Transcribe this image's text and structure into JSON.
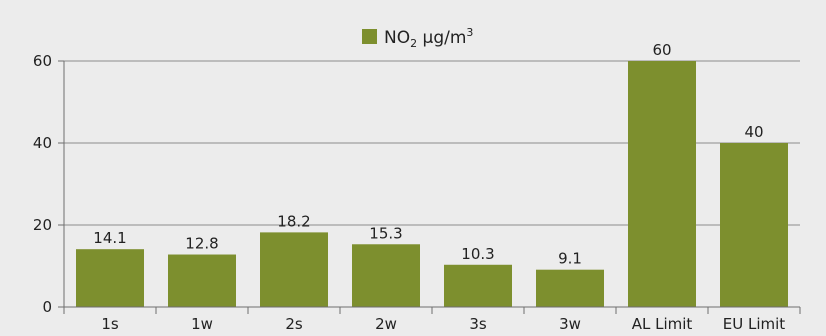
{
  "chart_data": {
    "type": "bar",
    "categories": [
      "1s",
      "1w",
      "2s",
      "2w",
      "3s",
      "3w",
      "AL Limit",
      "EU Limit"
    ],
    "series": [
      {
        "name": "NO₂ μg/m³",
        "values": [
          14.1,
          12.8,
          18.2,
          15.3,
          10.3,
          9.1,
          60,
          40
        ]
      }
    ],
    "data_labels": [
      "14.1",
      "12.8",
      "18.2",
      "15.3",
      "10.3",
      "9.1",
      "60",
      "40"
    ],
    "legend": {
      "base": "NO",
      "sub": "2",
      "unit": " μg/m",
      "sup": "3",
      "color": "#7d8f2e",
      "position": "top-center"
    },
    "ylim": [
      0,
      60
    ],
    "yticks": [
      0,
      20,
      40,
      60
    ],
    "grid": true,
    "colors": {
      "bar": "#7d8f2e",
      "background": "#ececec",
      "gridline": "#8c8c8c"
    },
    "title": "",
    "xlabel": "",
    "ylabel": ""
  }
}
